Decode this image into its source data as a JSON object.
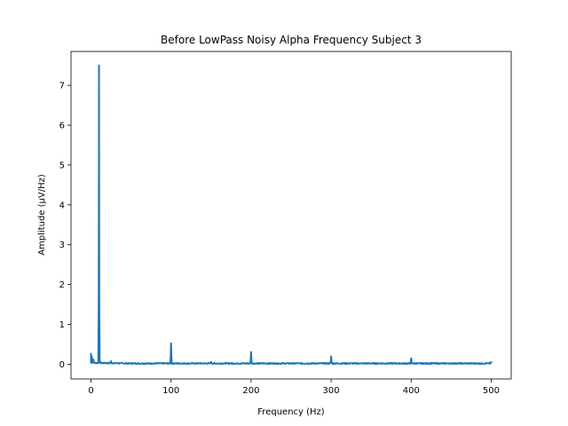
{
  "chart_data": {
    "type": "line",
    "title": "Before LowPass Noisy Alpha Frequency Subject 3",
    "xlabel": "Frequency (Hz)",
    "ylabel": "Amplitude (µV/Hz)",
    "xlim": [
      -25,
      525
    ],
    "ylim": [
      -0.37,
      7.85
    ],
    "x_ticks": [
      0,
      100,
      200,
      300,
      400,
      500
    ],
    "y_ticks": [
      0,
      1,
      2,
      3,
      4,
      5,
      6,
      7
    ],
    "grid": false,
    "line_color": "#1f77b4",
    "baseline": 0.02,
    "series": [
      {
        "peaks": [
          {
            "x": 0,
            "y": 0.28
          },
          {
            "x": 1,
            "y": 0.2
          },
          {
            "x": 3,
            "y": 0.12
          },
          {
            "x": 10,
            "y": 7.5
          },
          {
            "x": 25,
            "y": 0.08
          },
          {
            "x": 100,
            "y": 0.53
          },
          {
            "x": 150,
            "y": 0.06
          },
          {
            "x": 200,
            "y": 0.31
          },
          {
            "x": 300,
            "y": 0.2
          },
          {
            "x": 400,
            "y": 0.15
          },
          {
            "x": 500,
            "y": 0.07
          }
        ]
      }
    ]
  }
}
